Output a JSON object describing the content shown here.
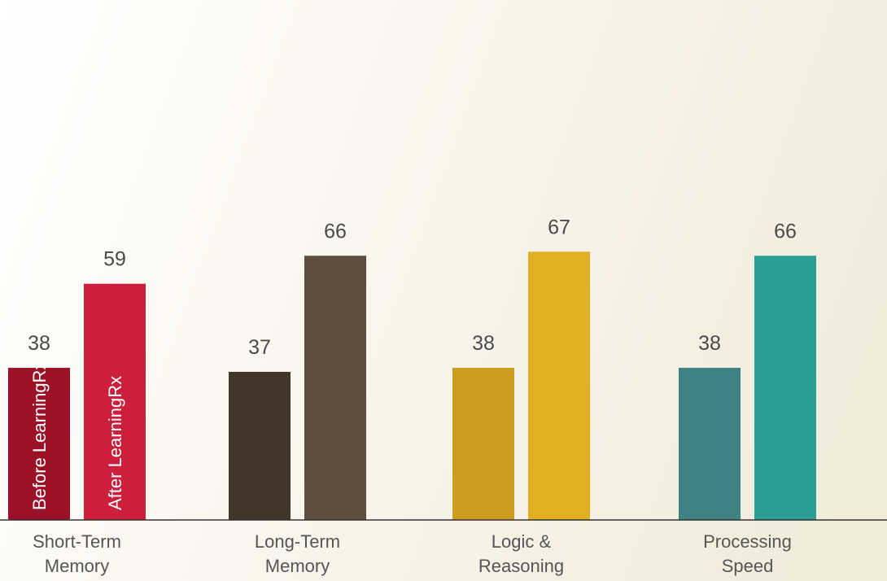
{
  "chart_data": {
    "type": "bar",
    "title": "",
    "xlabel": "",
    "ylabel": "",
    "grid": false,
    "legend_placement": "inside first group bars",
    "categories": [
      {
        "lines": [
          "Short-Term",
          "Memory"
        ]
      },
      {
        "lines": [
          "Long-Term",
          "Memory"
        ]
      },
      {
        "lines": [
          "Logic &",
          "Reasoning"
        ]
      },
      {
        "lines": [
          "Processing",
          "Speed"
        ]
      }
    ],
    "series": [
      {
        "name": "Before LearningRx",
        "values": [
          38,
          37,
          38,
          38
        ]
      },
      {
        "name": "After LearningRx",
        "values": [
          59,
          66,
          67,
          66
        ]
      }
    ],
    "colors": [
      [
        "#9b1127",
        "#cb1f3b"
      ],
      [
        "#40362a",
        "#5c4d3e"
      ],
      [
        "#cc9c20",
        "#e2af23"
      ],
      [
        "#3f8284",
        "#2b9f93"
      ]
    ],
    "value_label_color": "#4a4a4a",
    "axis_color": "#333333"
  }
}
